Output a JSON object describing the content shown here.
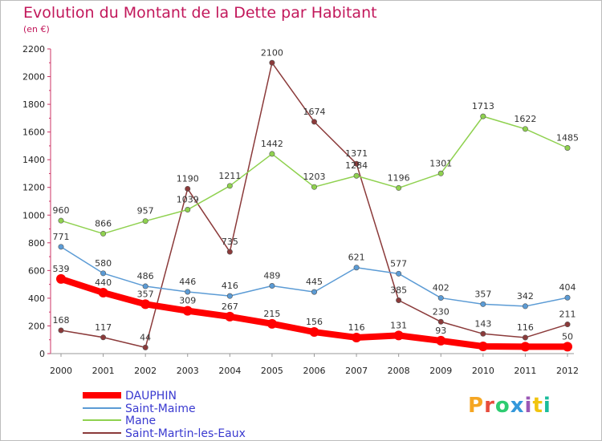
{
  "chart_data": {
    "type": "line",
    "title": "Evolution du Montant de la Dette par Habitant",
    "subtitle": "(en €)",
    "x": [
      "2000",
      "2001",
      "2002",
      "2003",
      "2004",
      "2005",
      "2006",
      "2007",
      "2008",
      "2009",
      "2010",
      "2011",
      "2012"
    ],
    "y_ticks": [
      "0",
      "200",
      "400",
      "600",
      "800",
      "1000",
      "1200",
      "1400",
      "1600",
      "1800",
      "2000",
      "2200"
    ],
    "ylim": [
      0,
      2200
    ],
    "grid": false,
    "legend_position": "bottom-left",
    "series": [
      {
        "name": "DAUPHIN",
        "color": "#ff0000",
        "values": [
          539,
          440,
          357,
          309,
          267,
          215,
          156,
          116,
          131,
          93,
          52,
          50,
          50
        ],
        "labels": [
          "539",
          "440",
          "357",
          "309",
          "267",
          "215",
          "156",
          "116",
          "131",
          "93",
          "",
          "",
          "50"
        ]
      },
      {
        "name": "Saint-Maime",
        "color": "#5b9bd5",
        "values": [
          771,
          580,
          486,
          446,
          416,
          489,
          445,
          621,
          577,
          402,
          357,
          342,
          404
        ],
        "labels": [
          "771",
          "580",
          "486",
          "446",
          "416",
          "489",
          "445",
          "621",
          "577",
          "402",
          "357",
          "342",
          "404"
        ]
      },
      {
        "name": "Mane",
        "color": "#8fd14f",
        "values": [
          960,
          866,
          957,
          1039,
          1211,
          1442,
          1203,
          1284,
          1196,
          1301,
          1713,
          1622,
          1485
        ],
        "labels": [
          "960",
          "866",
          "957",
          "1039",
          "1211",
          "1442",
          "1203",
          "1284",
          "1196",
          "1301",
          "1713",
          "1622",
          "1485"
        ]
      },
      {
        "name": "Saint-Martin-les-Eaux",
        "color": "#8b3a3a",
        "values": [
          168,
          117,
          44,
          1190,
          735,
          2100,
          1674,
          1371,
          385,
          230,
          143,
          116,
          211
        ],
        "labels": [
          "168",
          "117",
          "44",
          "1190",
          "735",
          "2100",
          "1674",
          "1371",
          "385",
          "230",
          "143",
          "116",
          "211"
        ]
      }
    ]
  },
  "logo": {
    "letters": [
      "P",
      "r",
      "o",
      "x",
      "i",
      "t",
      "i"
    ],
    "colors": [
      "#f5a623",
      "#e74c3c",
      "#2ecc71",
      "#3498db",
      "#9b59b6",
      "#f1c40f",
      "#1abc9c"
    ]
  }
}
